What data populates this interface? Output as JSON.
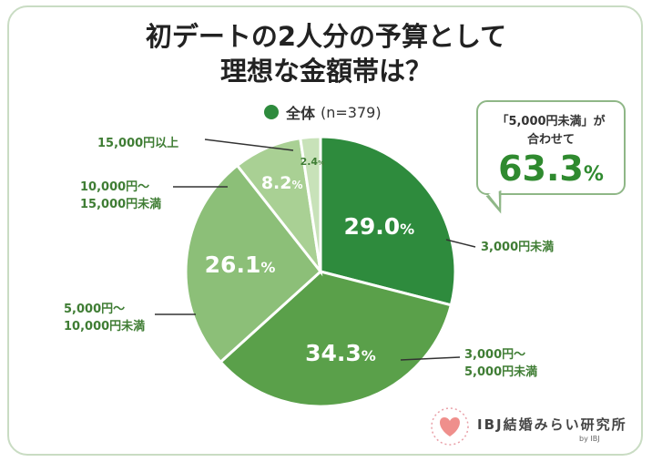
{
  "title": {
    "line1": "初デートの2人分の予算として",
    "line2": "理想な金額帯は？"
  },
  "legend": {
    "label": "全体",
    "sublabel": "(n=379)",
    "color": "#2e8b3d"
  },
  "callout": {
    "line1": "「5,000円未満」が",
    "line2": "合わせて",
    "value": "63.3",
    "unit": "%"
  },
  "chart_data": {
    "type": "pie",
    "title": "初デートの2人分の予算として理想な金額帯は？",
    "start": "top, clockwise",
    "slices": [
      {
        "label_lines": [
          "3,000円未満"
        ],
        "value": 29.0,
        "value_text": "29.0",
        "color": "#2e8b3d",
        "label_color": "#ffffff"
      },
      {
        "label_lines": [
          "3,000円～",
          "5,000円未満"
        ],
        "value": 34.3,
        "value_text": "34.3",
        "color": "#5aa04a",
        "label_color": "#ffffff"
      },
      {
        "label_lines": [
          "5,000円～",
          "10,000円未満"
        ],
        "value": 26.1,
        "value_text": "26.1",
        "color": "#8cbf78",
        "label_color": "#ffffff"
      },
      {
        "label_lines": [
          "10,000円～",
          "15,000円未満"
        ],
        "value": 8.2,
        "value_text": "8.2",
        "color": "#a9d094",
        "label_color": "#ffffff"
      },
      {
        "label_lines": [
          "15,000円以上"
        ],
        "value": 2.4,
        "value_text": "2.4",
        "color": "#c8e2b9",
        "label_color": "#3f7d34"
      }
    ],
    "unit": "%"
  },
  "brand": {
    "name": "IBJ結婚みらい研究所",
    "by": "by IBJ"
  }
}
